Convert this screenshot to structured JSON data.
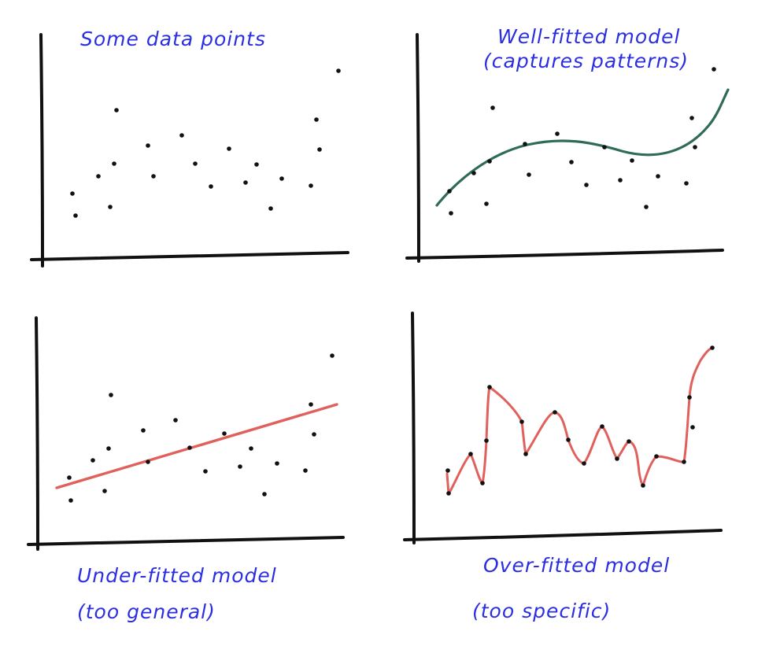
{
  "chart_data": [
    {
      "type": "scatter",
      "title": "Some data points",
      "subtitle": "",
      "points": [
        [
          92,
          246
        ],
        [
          96,
          274
        ],
        [
          125,
          224
        ],
        [
          140,
          263
        ],
        [
          145,
          208
        ],
        [
          148,
          140
        ],
        [
          188,
          185
        ],
        [
          195,
          224
        ],
        [
          231,
          172
        ],
        [
          248,
          208
        ],
        [
          268,
          237
        ],
        [
          291,
          189
        ],
        [
          312,
          232
        ],
        [
          326,
          209
        ],
        [
          344,
          265
        ],
        [
          358,
          227
        ],
        [
          395,
          236
        ],
        [
          402,
          152
        ],
        [
          406,
          190
        ],
        [
          430,
          90
        ]
      ]
    },
    {
      "type": "line",
      "title": "Well-fitted model",
      "subtitle": "(captures patterns)",
      "points": [
        [
          573,
          271
        ],
        [
          571,
          243
        ],
        [
          602,
          220
        ],
        [
          618,
          259
        ],
        [
          622,
          205
        ],
        [
          626,
          137
        ],
        [
          667,
          183
        ],
        [
          672,
          222
        ],
        [
          708,
          170
        ],
        [
          726,
          206
        ],
        [
          745,
          235
        ],
        [
          768,
          187
        ],
        [
          788,
          229
        ],
        [
          803,
          204
        ],
        [
          821,
          263
        ],
        [
          836,
          224
        ],
        [
          872,
          233
        ],
        [
          879,
          150
        ],
        [
          883,
          187
        ],
        [
          907,
          88
        ]
      ],
      "series": [
        {
          "name": "",
          "color": "#2f6b55",
          "curve": "smooth"
        }
      ]
    },
    {
      "type": "line",
      "title": "Under-fitted model",
      "subtitle": "(too general)",
      "points": [
        [
          88,
          607
        ],
        [
          90,
          636
        ],
        [
          118,
          585
        ],
        [
          133,
          624
        ],
        [
          138,
          570
        ],
        [
          141,
          502
        ],
        [
          182,
          547
        ],
        [
          188,
          587
        ],
        [
          223,
          534
        ],
        [
          241,
          569
        ],
        [
          261,
          599
        ],
        [
          285,
          551
        ],
        [
          305,
          593
        ],
        [
          319,
          570
        ],
        [
          336,
          628
        ],
        [
          352,
          589
        ],
        [
          388,
          598
        ],
        [
          395,
          514
        ],
        [
          399,
          552
        ],
        [
          422,
          452
        ]
      ],
      "series": [
        {
          "name": "",
          "color": "#e0605c",
          "curve": "straight",
          "start": [
            72,
            620
          ],
          "end": [
            428,
            514
          ]
        }
      ]
    },
    {
      "type": "line",
      "title": "Over-fitted model",
      "subtitle": "(too specific)",
      "points": [
        [
          569,
          598
        ],
        [
          570,
          627
        ],
        [
          598,
          577
        ],
        [
          613,
          614
        ],
        [
          618,
          560
        ],
        [
          622,
          492
        ],
        [
          663,
          536
        ],
        [
          668,
          577
        ],
        [
          705,
          524
        ],
        [
          722,
          559
        ],
        [
          742,
          589
        ],
        [
          765,
          542
        ],
        [
          784,
          583
        ],
        [
          799,
          561
        ],
        [
          817,
          617
        ],
        [
          834,
          580
        ],
        [
          869,
          587
        ],
        [
          876,
          505
        ],
        [
          880,
          543
        ],
        [
          905,
          442
        ]
      ],
      "series": [
        {
          "name": "",
          "color": "#e0605c",
          "curve": "through-all-points"
        }
      ]
    }
  ]
}
